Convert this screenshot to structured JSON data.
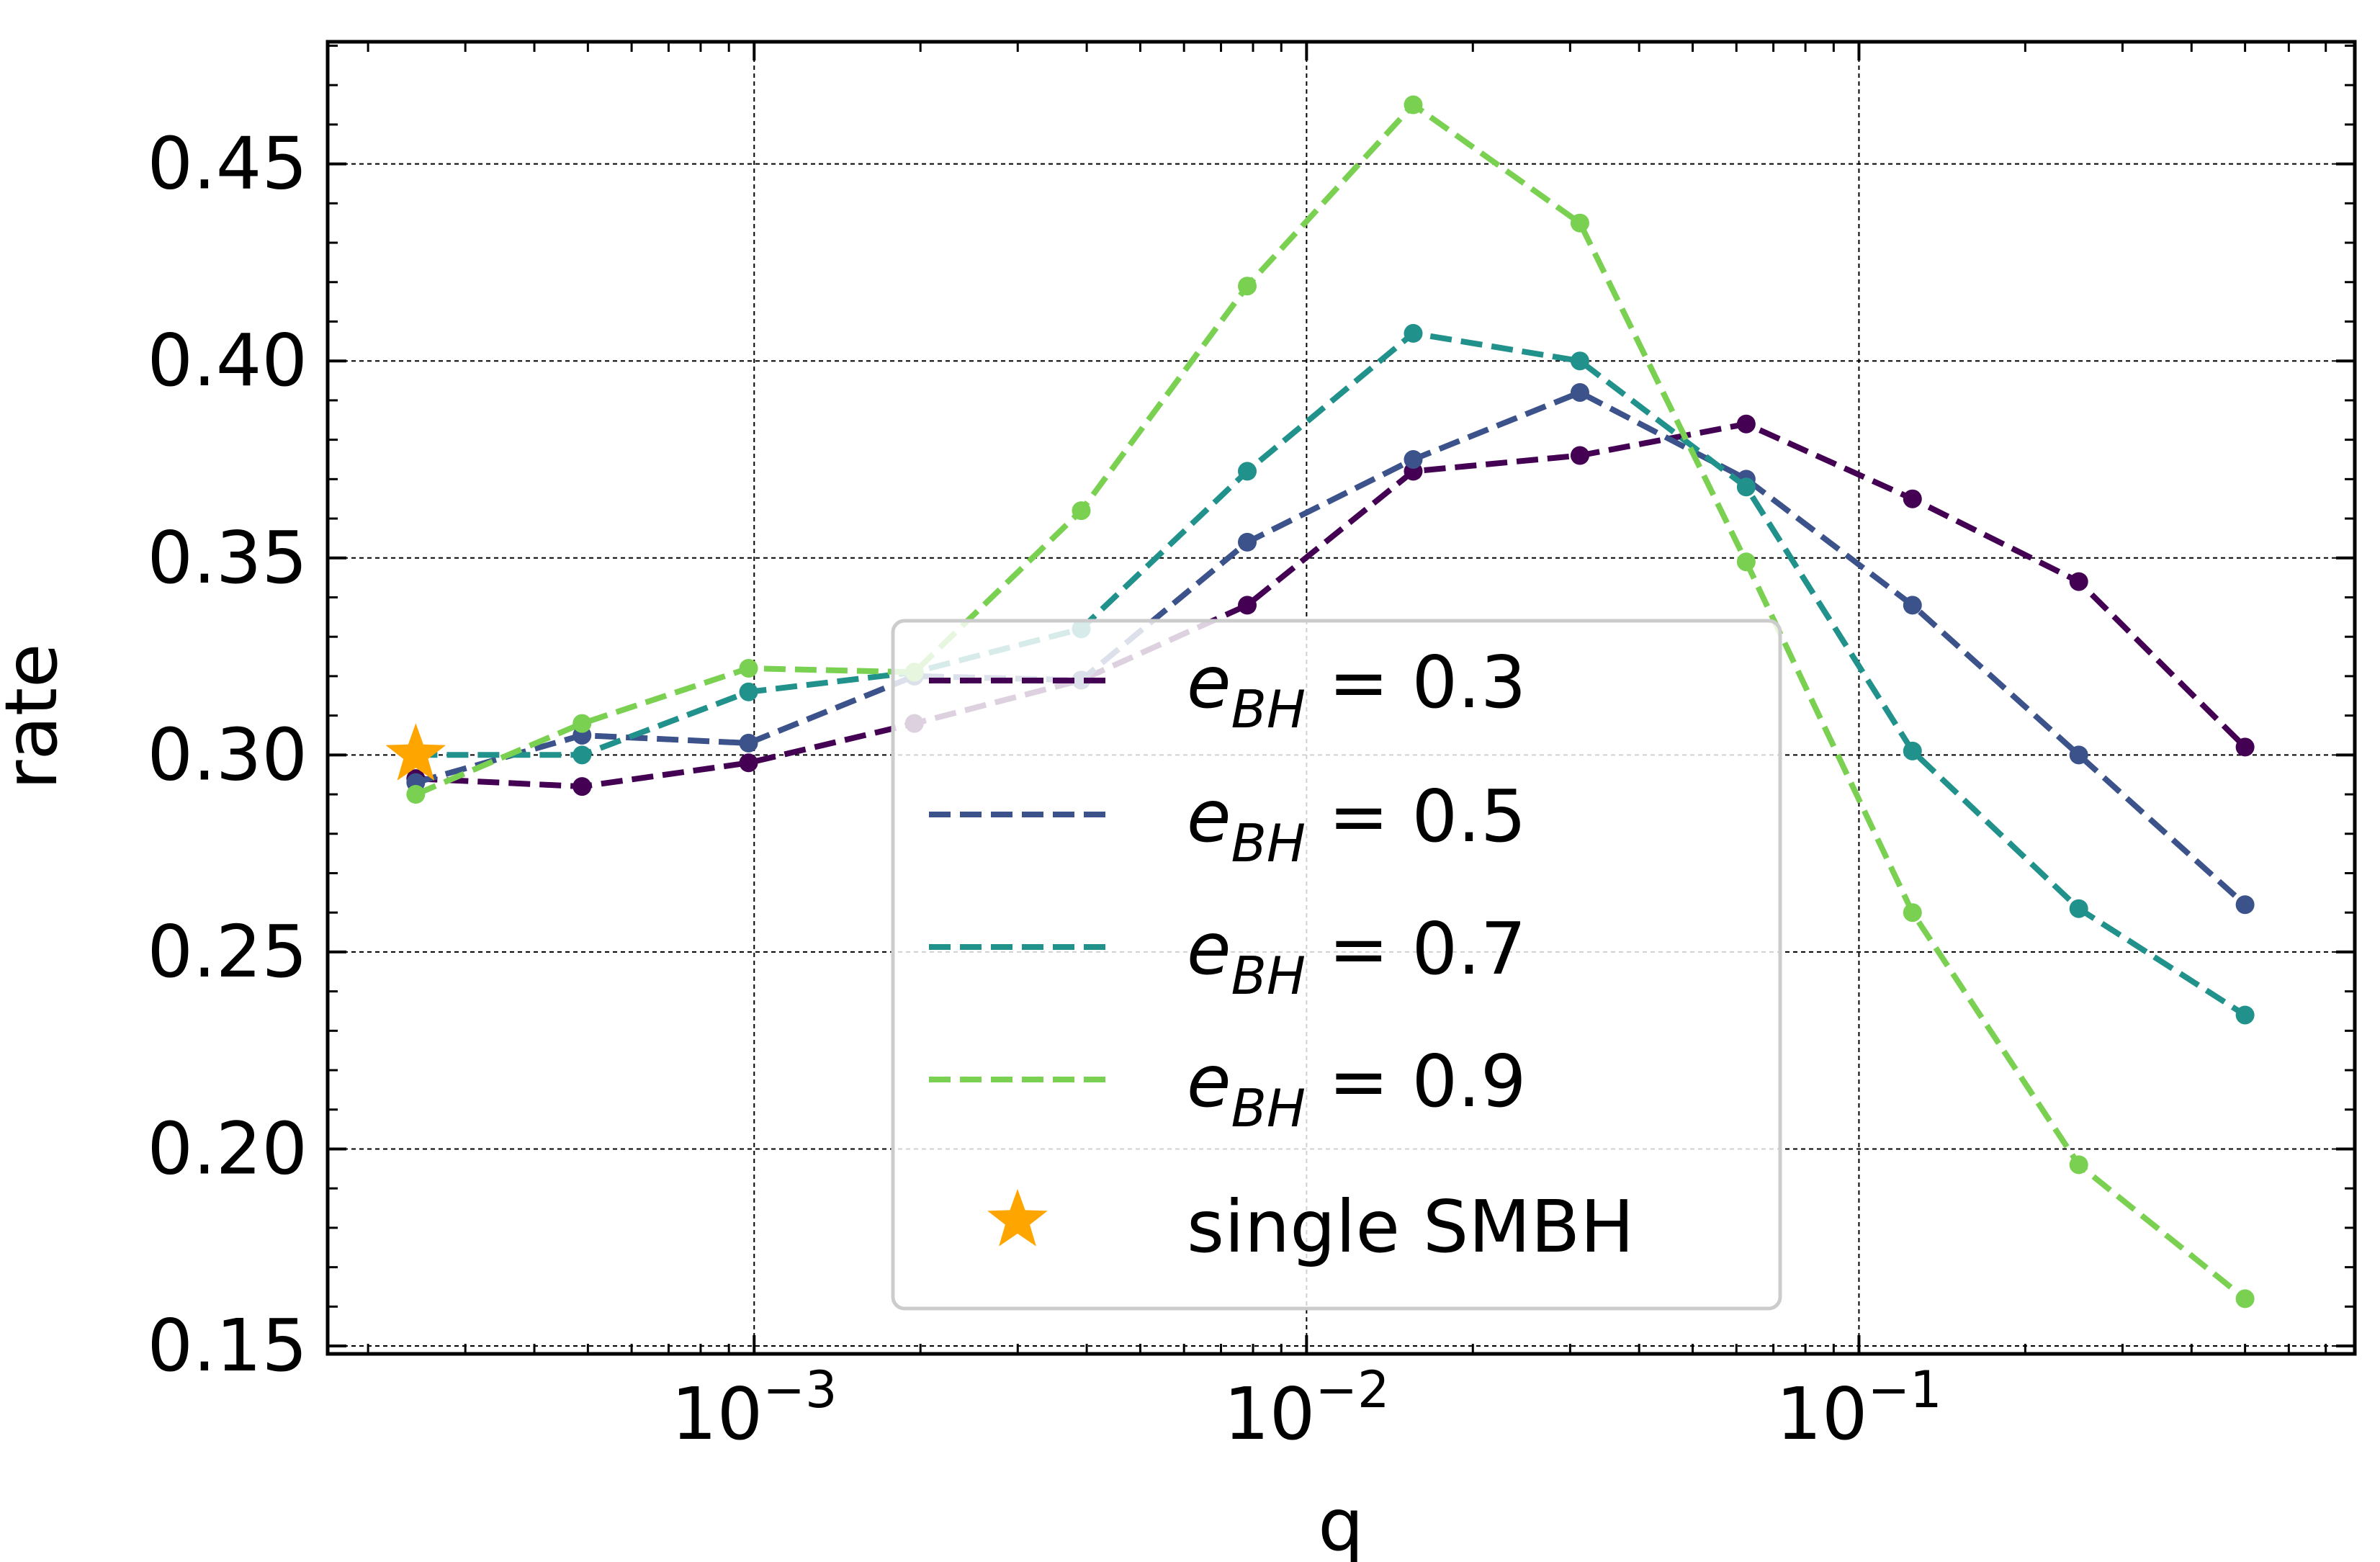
{
  "chart_data": {
    "type": "line",
    "title": "",
    "xlabel": "q",
    "ylabel": "rate",
    "xscale": "log",
    "xlim": [
      0.000169,
      0.79
    ],
    "ylim": [
      0.148,
      0.481
    ],
    "grid": true,
    "legend_position": "center",
    "x": [
      0.000244,
      0.000488,
      0.000977,
      0.00195,
      0.00391,
      0.00781,
      0.0156,
      0.03125,
      0.0625,
      0.125,
      0.25,
      0.5
    ],
    "x_tick_labels": [
      {
        "base": "10",
        "exp": "−3",
        "value": 0.001
      },
      {
        "base": "10",
        "exp": "−2",
        "value": 0.01
      },
      {
        "base": "10",
        "exp": "−1",
        "value": 0.1
      }
    ],
    "y_ticks": [
      0.15,
      0.2,
      0.25,
      0.3,
      0.35,
      0.4,
      0.45
    ],
    "y_tick_labels": [
      "0.15",
      "0.20",
      "0.25",
      "0.30",
      "0.35",
      "0.40",
      "0.45"
    ],
    "series": [
      {
        "name": "e_BH = 0.3",
        "label_base": "e",
        "label_sub": "BH",
        "label_value": " = 0.3",
        "color": "#440154",
        "values": [
          0.294,
          0.292,
          0.298,
          0.308,
          0.319,
          0.338,
          0.372,
          0.376,
          0.384,
          0.365,
          0.344,
          0.302
        ]
      },
      {
        "name": "e_BH = 0.5",
        "label_base": "e",
        "label_sub": "BH",
        "label_value": " = 0.5",
        "color": "#3b528b",
        "values": [
          0.293,
          0.305,
          0.303,
          0.32,
          0.319,
          0.354,
          0.375,
          0.392,
          0.37,
          0.338,
          0.3,
          0.262
        ]
      },
      {
        "name": "e_BH = 0.7",
        "label_base": "e",
        "label_sub": "BH",
        "label_value": " = 0.7",
        "color": "#21918c",
        "values": [
          0.3,
          0.3,
          0.316,
          0.321,
          0.332,
          0.372,
          0.407,
          0.4,
          0.368,
          0.301,
          0.261,
          0.234
        ]
      },
      {
        "name": "e_BH = 0.9",
        "label_base": "e",
        "label_sub": "BH",
        "label_value": " = 0.9",
        "color": "#7ad151",
        "values": [
          0.29,
          0.308,
          0.322,
          0.321,
          0.362,
          0.419,
          0.465,
          0.435,
          0.349,
          0.26,
          0.196,
          0.162
        ]
      }
    ],
    "marker": {
      "name": "single SMBH",
      "x": 0.000244,
      "y": 0.3,
      "color": "#ffa500"
    }
  }
}
